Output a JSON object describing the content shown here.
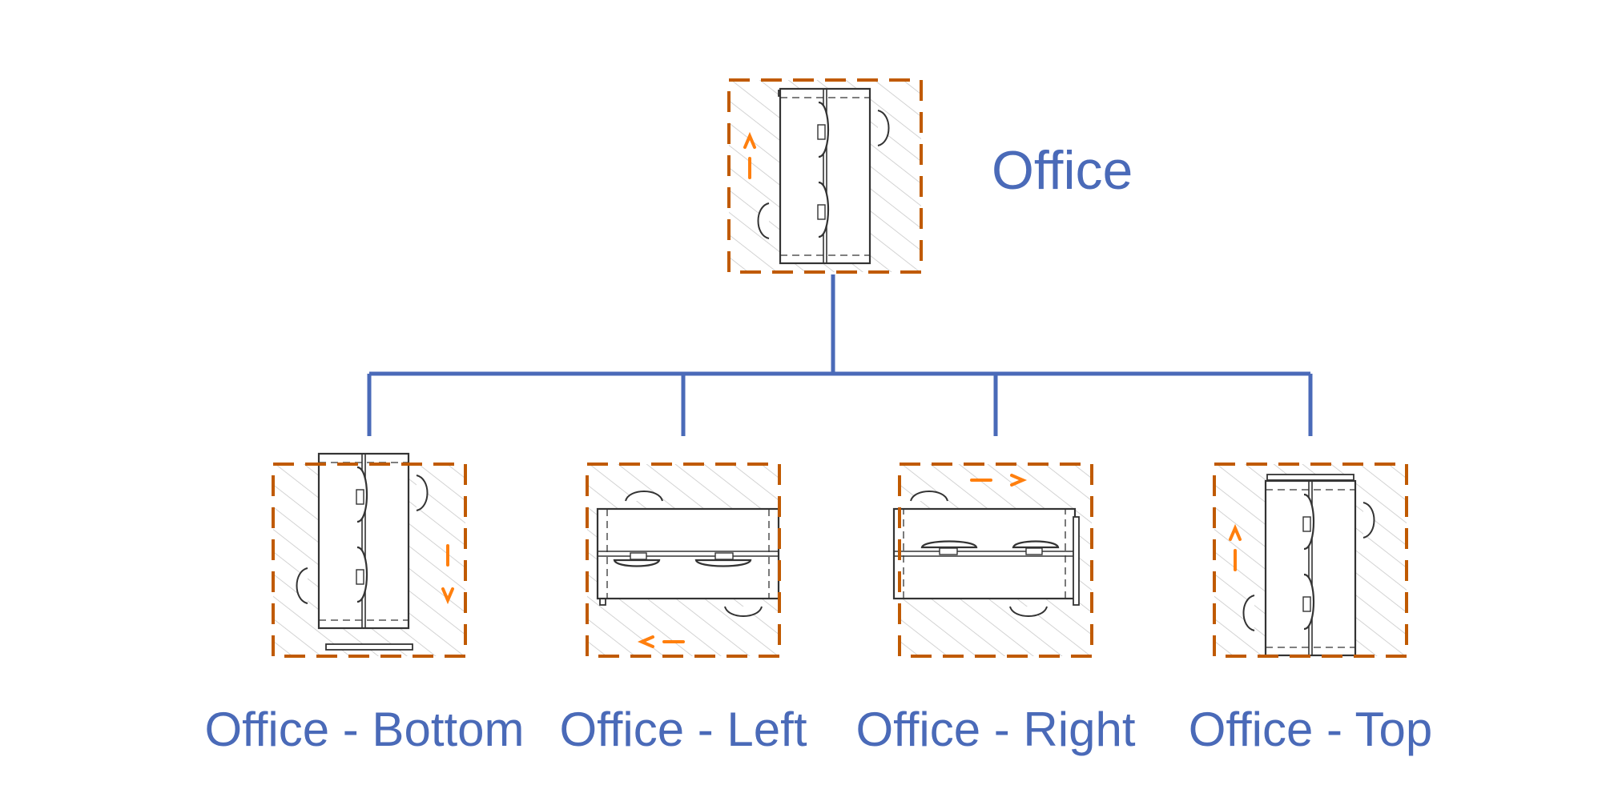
{
  "colors": {
    "label": "#4a6ab8",
    "connector": "#4a6ab8",
    "room_border": "#c05a00",
    "door_arrow": "#ff7f0e",
    "hatch": "#c8c8c8",
    "furniture": "#333333"
  },
  "parent": {
    "label": "Office"
  },
  "children": [
    {
      "label": "Office - Bottom"
    },
    {
      "label": "Office - Left"
    },
    {
      "label": "Office - Right"
    },
    {
      "label": "Office - Top"
    }
  ]
}
